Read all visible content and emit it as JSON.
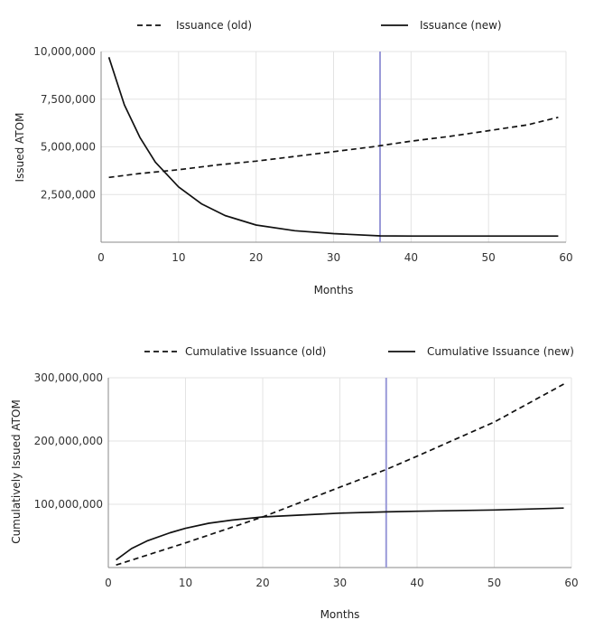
{
  "chart_data": [
    {
      "type": "line",
      "xlabel": "Months",
      "ylabel": "Issued ATOM",
      "xlim": [
        0,
        60
      ],
      "ylim": [
        0,
        10000000
      ],
      "x_ticks": [
        "0",
        "10",
        "20",
        "30",
        "40",
        "50",
        "60"
      ],
      "y_ticks": [
        "2,500,000",
        "5,000,000",
        "7,500,000",
        "10,000,000"
      ],
      "grid": true,
      "legend_position": "top",
      "vertical_marker_x": 36,
      "marker_color": "#9a9ad8",
      "series": [
        {
          "name": "Issuance (old)",
          "style": "dashed",
          "x": [
            1,
            5,
            10,
            15,
            20,
            25,
            30,
            35,
            40,
            45,
            50,
            55,
            59
          ],
          "y": [
            3400000,
            3600000,
            3800000,
            4050000,
            4250000,
            4500000,
            4750000,
            5000000,
            5300000,
            5550000,
            5850000,
            6150000,
            6550000
          ]
        },
        {
          "name": "Issuance (new)",
          "style": "solid",
          "x": [
            1,
            3,
            5,
            7,
            10,
            13,
            16,
            20,
            25,
            30,
            36,
            40,
            45,
            50,
            55,
            59
          ],
          "y": [
            9700000,
            7200000,
            5500000,
            4200000,
            2900000,
            2000000,
            1400000,
            900000,
            600000,
            450000,
            330000,
            320000,
            320000,
            320000,
            320000,
            320000
          ]
        }
      ]
    },
    {
      "type": "line",
      "xlabel": "Months",
      "ylabel": "Cumulatively Issued ATOM",
      "xlim": [
        0,
        60
      ],
      "ylim": [
        0,
        300000000
      ],
      "x_ticks": [
        "0",
        "10",
        "20",
        "30",
        "40",
        "50",
        "60"
      ],
      "y_ticks": [
        "100,000,000",
        "200,000,000",
        "300,000,000"
      ],
      "grid": true,
      "legend_position": "top",
      "vertical_marker_x": 36,
      "marker_color": "#9a9ad8",
      "series": [
        {
          "name": "Cumulative Issuance (old)",
          "style": "dashed",
          "x": [
            1,
            10,
            20,
            30,
            36,
            40,
            50,
            59
          ],
          "y": [
            4000000,
            39000000,
            80000000,
            127000000,
            155000000,
            176000000,
            230000000,
            290000000
          ]
        },
        {
          "name": "Cumulative Issuance (new)",
          "style": "solid",
          "x": [
            1,
            3,
            5,
            8,
            10,
            13,
            16,
            20,
            25,
            30,
            36,
            40,
            50,
            59
          ],
          "y": [
            12000000,
            30000000,
            42000000,
            55000000,
            62000000,
            70000000,
            75000000,
            80000000,
            83000000,
            86000000,
            88000000,
            89000000,
            91000000,
            94000000
          ]
        }
      ]
    }
  ]
}
